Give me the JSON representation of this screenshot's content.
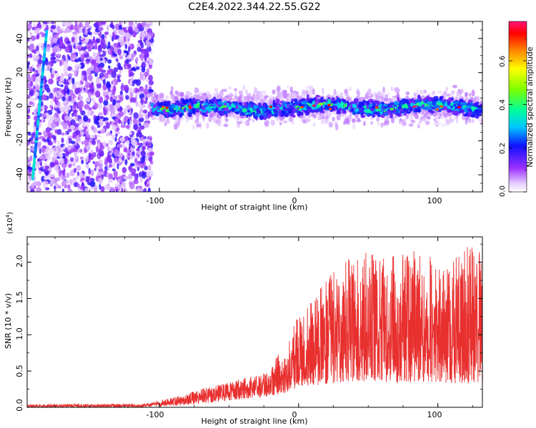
{
  "figure": {
    "title": "C2E4.2022.344.22.55.G22"
  },
  "chart_data": [
    {
      "type": "heatmap",
      "xlabel": "Height of straight line (km)",
      "ylabel": "Frequency (Hz)",
      "xlim": [
        -195,
        132
      ],
      "ylim": [
        -50,
        50
      ],
      "xticks": [
        -100,
        0,
        100
      ],
      "yticks": [
        -40,
        -20,
        0,
        20,
        40
      ],
      "colorbar": {
        "label": "Normalized spectral amplitude",
        "range": [
          0.0,
          0.78
        ],
        "ticks": [
          0.0,
          0.2,
          0.4,
          0.6
        ]
      },
      "features": {
        "diagonal_streak": {
          "x": [
            -191,
            -181
          ],
          "y": [
            -42,
            44
          ]
        },
        "broadband_noise_region": {
          "x": [
            -195,
            -105
          ],
          "y": [
            -50,
            50
          ]
        },
        "central_band_center_hz": 0,
        "central_band_halfwidth_hz": 6,
        "central_band_x": [
          -105,
          132
        ]
      }
    },
    {
      "type": "line",
      "xlabel": "Height of straight line (km)",
      "ylabel": "SNR (10 * v/v)",
      "y_multiplier": "(x10",
      "y_multiplier_exp": "4",
      "y_multiplier_close": ")",
      "xlim": [
        -195,
        132
      ],
      "ylim": [
        0,
        2.35
      ],
      "xticks": [
        -100,
        0,
        100
      ],
      "yticks": [
        0.0,
        0.5,
        1.0,
        1.5,
        2.0
      ],
      "color": "#e8302f",
      "envelope": {
        "x": [
          -195,
          -110,
          -100,
          -90,
          -80,
          -70,
          -60,
          -50,
          -40,
          -30,
          -20,
          -15,
          -10,
          0,
          10,
          20,
          30,
          40,
          50,
          60,
          70,
          80,
          90,
          100,
          110,
          120,
          132
        ],
        "low": [
          0.0,
          0.0,
          0.01,
          0.02,
          0.03,
          0.05,
          0.07,
          0.09,
          0.11,
          0.13,
          0.15,
          0.17,
          0.2,
          0.28,
          0.3,
          0.32,
          0.34,
          0.36,
          0.36,
          0.35,
          0.34,
          0.34,
          0.33,
          0.33,
          0.33,
          0.33,
          0.33
        ],
        "high": [
          0.04,
          0.05,
          0.09,
          0.14,
          0.19,
          0.25,
          0.3,
          0.34,
          0.4,
          0.45,
          0.5,
          0.8,
          0.7,
          1.35,
          1.55,
          1.75,
          2.0,
          2.1,
          2.15,
          2.1,
          2.12,
          2.15,
          2.2,
          1.95,
          2.1,
          2.25,
          2.15
        ]
      }
    }
  ],
  "ticks": {
    "heatmap_x": [
      "-100",
      "0",
      "100"
    ],
    "heatmap_y": [
      "40",
      "20",
      "0",
      "-20",
      "-40"
    ],
    "colorbar": [
      "0.0",
      "0.2",
      "0.4",
      "0.6"
    ],
    "snr_x": [
      "-100",
      "0",
      "100"
    ],
    "snr_y": [
      "0.0",
      "0.5",
      "1.0",
      "1.5",
      "2.0"
    ]
  }
}
